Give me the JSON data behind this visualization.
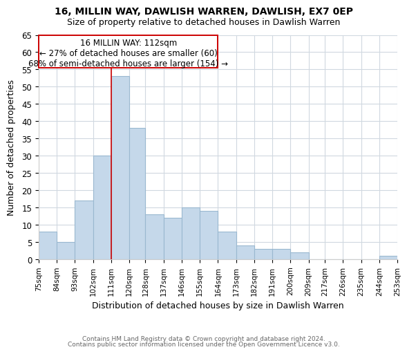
{
  "title": "16, MILLIN WAY, DAWLISH WARREN, DAWLISH, EX7 0EP",
  "subtitle": "Size of property relative to detached houses in Dawlish Warren",
  "xlabel": "Distribution of detached houses by size in Dawlish Warren",
  "ylabel": "Number of detached properties",
  "bins": [
    75,
    84,
    93,
    102,
    111,
    120,
    128,
    137,
    146,
    155,
    164,
    173,
    182,
    191,
    200,
    209,
    217,
    226,
    235,
    244,
    253
  ],
  "values": [
    8,
    5,
    17,
    30,
    53,
    38,
    13,
    12,
    15,
    14,
    8,
    4,
    3,
    3,
    2,
    0,
    0,
    0,
    0,
    1
  ],
  "bar_color": "#c5d8ea",
  "bar_edge_color": "#9ab8d0",
  "property_line_x": 111,
  "property_line_color": "#cc0000",
  "ylim": [
    0,
    65
  ],
  "yticks": [
    0,
    5,
    10,
    15,
    20,
    25,
    30,
    35,
    40,
    45,
    50,
    55,
    60,
    65
  ],
  "tick_labels": [
    "75sqm",
    "84sqm",
    "93sqm",
    "102sqm",
    "111sqm",
    "120sqm",
    "128sqm",
    "137sqm",
    "146sqm",
    "155sqm",
    "164sqm",
    "173sqm",
    "182sqm",
    "191sqm",
    "200sqm",
    "209sqm",
    "217sqm",
    "226sqm",
    "235sqm",
    "244sqm",
    "253sqm"
  ],
  "annotation_title": "16 MILLIN WAY: 112sqm",
  "annotation_line1": "← 27% of detached houses are smaller (60)",
  "annotation_line2": "68% of semi-detached houses are larger (154) →",
  "footer1": "Contains HM Land Registry data © Crown copyright and database right 2024.",
  "footer2": "Contains public sector information licensed under the Open Government Licence v3.0.",
  "background_color": "#ffffff",
  "grid_color": "#d0d8e0"
}
